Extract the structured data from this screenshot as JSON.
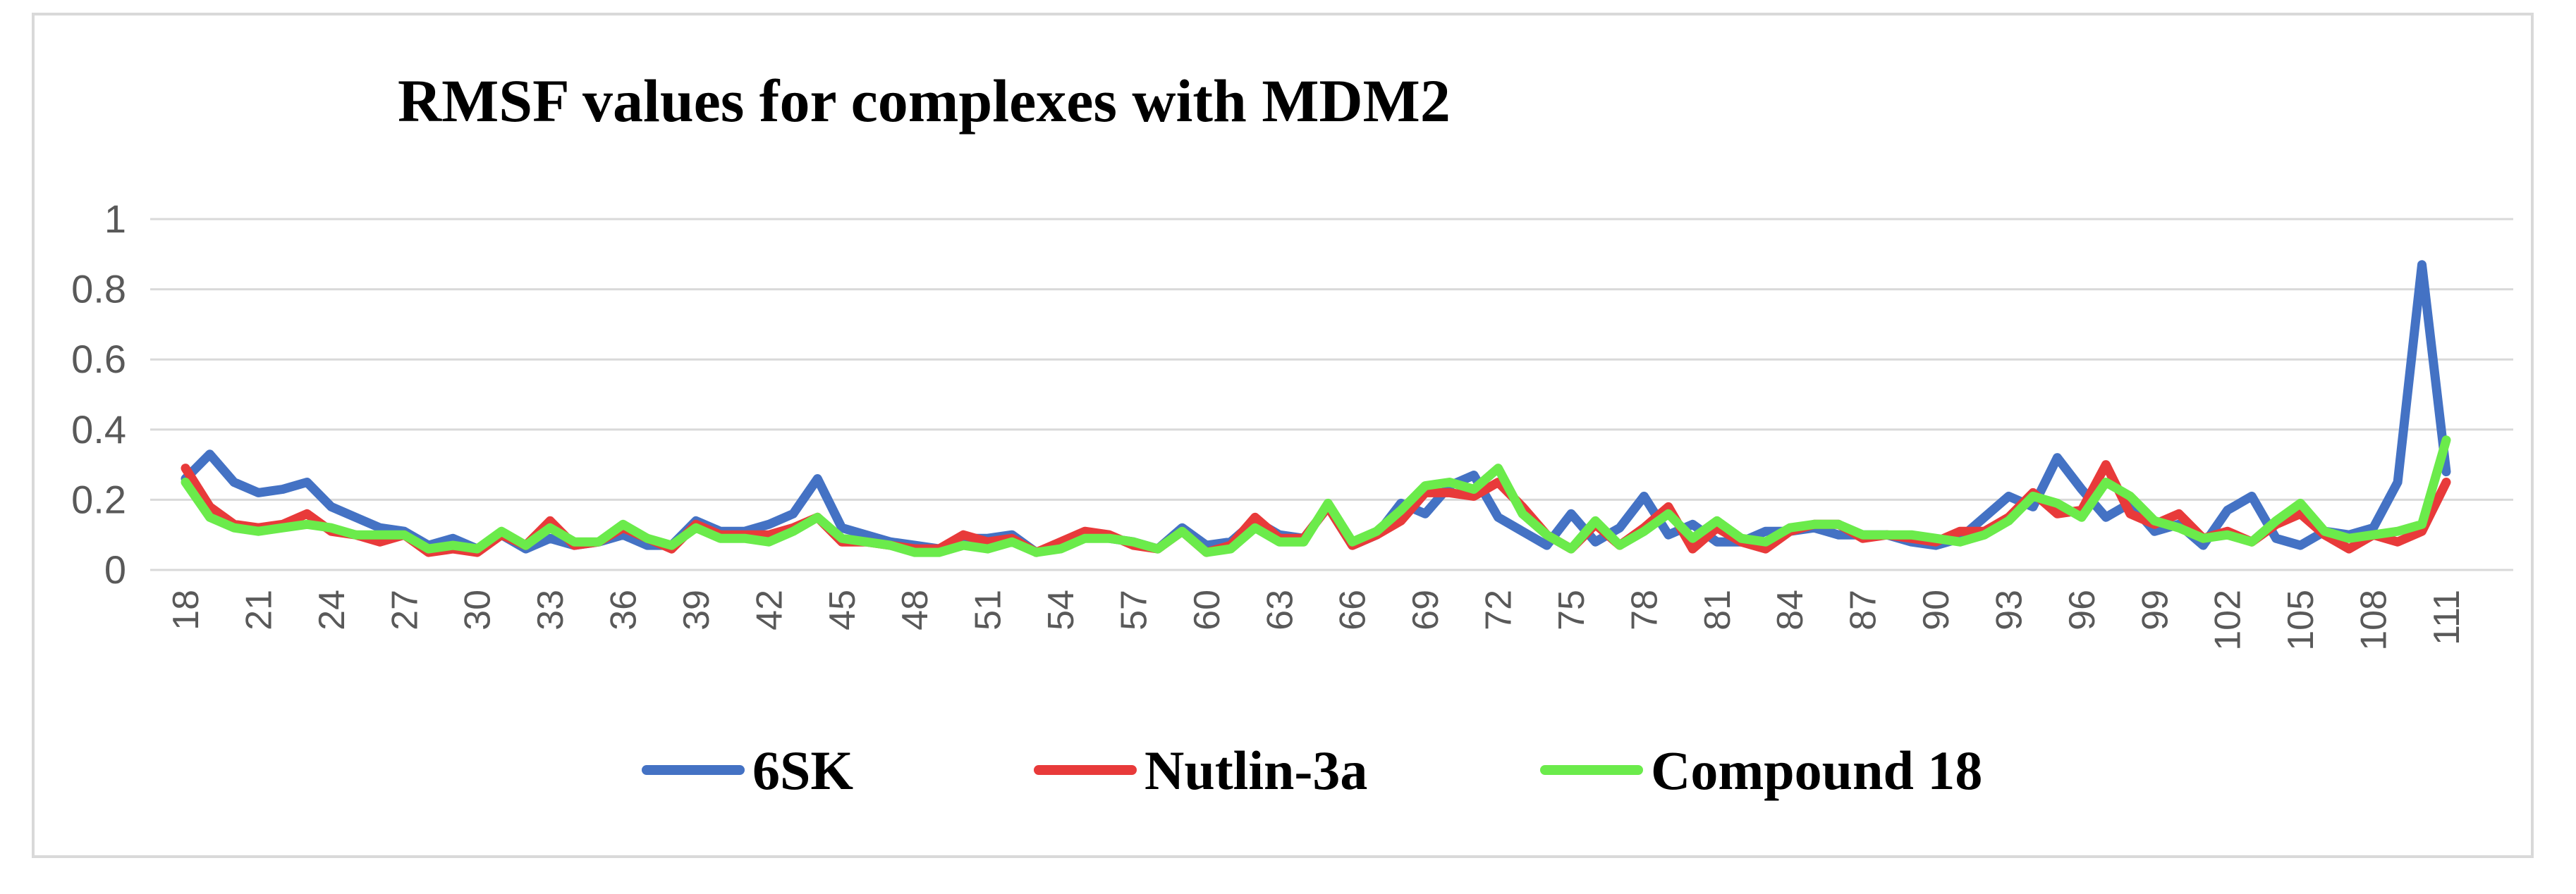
{
  "chart_data": {
    "type": "line",
    "title": "RMSF values for complexes with MDM2",
    "xlabel": "",
    "ylabel": "",
    "ylim": [
      0,
      1
    ],
    "yticks": [
      "0",
      "0.2",
      "0.4",
      "0.6",
      "0.8",
      "1"
    ],
    "x": [
      18,
      19,
      20,
      21,
      22,
      23,
      24,
      25,
      26,
      27,
      28,
      29,
      30,
      31,
      32,
      33,
      34,
      35,
      36,
      37,
      38,
      39,
      40,
      41,
      42,
      43,
      44,
      45,
      46,
      47,
      48,
      49,
      50,
      51,
      52,
      53,
      54,
      55,
      56,
      57,
      58,
      59,
      60,
      61,
      62,
      63,
      64,
      65,
      66,
      67,
      68,
      69,
      70,
      71,
      72,
      73,
      74,
      75,
      76,
      77,
      78,
      79,
      80,
      81,
      82,
      83,
      84,
      85,
      86,
      87,
      88,
      89,
      90,
      91,
      92,
      93,
      94,
      95,
      96,
      97,
      98,
      99,
      100,
      101,
      102,
      103,
      104,
      105,
      106,
      107,
      108,
      109,
      110,
      111
    ],
    "xtick_labels": [
      "18",
      "21",
      "24",
      "27",
      "30",
      "33",
      "36",
      "39",
      "42",
      "45",
      "48",
      "51",
      "54",
      "57",
      "60",
      "63",
      "66",
      "69",
      "72",
      "75",
      "78",
      "81",
      "84",
      "87",
      "90",
      "93",
      "96",
      "99",
      "102",
      "105",
      "108",
      "111"
    ],
    "grid": "horizontal",
    "legend_position": "bottom",
    "series": [
      {
        "name": "6SK",
        "color": "#4472C4",
        "values": [
          0.26,
          0.33,
          0.25,
          0.22,
          0.23,
          0.25,
          0.18,
          0.15,
          0.12,
          0.11,
          0.07,
          0.09,
          0.06,
          0.1,
          0.06,
          0.09,
          0.07,
          0.08,
          0.1,
          0.07,
          0.07,
          0.14,
          0.11,
          0.11,
          0.13,
          0.16,
          0.26,
          0.12,
          0.1,
          0.08,
          0.07,
          0.06,
          0.09,
          0.09,
          0.1,
          0.05,
          0.07,
          0.1,
          0.09,
          0.08,
          0.06,
          0.12,
          0.07,
          0.08,
          0.14,
          0.1,
          0.09,
          0.18,
          0.07,
          0.1,
          0.19,
          0.16,
          0.24,
          0.27,
          0.15,
          0.11,
          0.07,
          0.16,
          0.08,
          0.12,
          0.21,
          0.1,
          0.13,
          0.08,
          0.08,
          0.11,
          0.11,
          0.12,
          0.1,
          0.1,
          0.1,
          0.08,
          0.07,
          0.09,
          0.15,
          0.21,
          0.18,
          0.32,
          0.23,
          0.15,
          0.19,
          0.11,
          0.13,
          0.07,
          0.17,
          0.21,
          0.09,
          0.07,
          0.11,
          0.1,
          0.12,
          0.25,
          0.87,
          0.28
        ]
      },
      {
        "name": "Nutlin-3a",
        "color": "#E83A3A",
        "values": [
          0.29,
          0.18,
          0.13,
          0.12,
          0.13,
          0.16,
          0.11,
          0.1,
          0.08,
          0.1,
          0.05,
          0.06,
          0.05,
          0.1,
          0.07,
          0.14,
          0.07,
          0.08,
          0.12,
          0.09,
          0.06,
          0.13,
          0.1,
          0.1,
          0.1,
          0.12,
          0.15,
          0.08,
          0.08,
          0.07,
          0.06,
          0.06,
          0.1,
          0.08,
          0.09,
          0.05,
          0.08,
          0.11,
          0.1,
          0.07,
          0.06,
          0.11,
          0.05,
          0.07,
          0.15,
          0.09,
          0.09,
          0.18,
          0.07,
          0.1,
          0.14,
          0.22,
          0.22,
          0.21,
          0.25,
          0.18,
          0.1,
          0.06,
          0.13,
          0.07,
          0.12,
          0.18,
          0.06,
          0.12,
          0.08,
          0.06,
          0.11,
          0.13,
          0.13,
          0.09,
          0.1,
          0.09,
          0.08,
          0.11,
          0.11,
          0.15,
          0.22,
          0.16,
          0.17,
          0.3,
          0.16,
          0.13,
          0.16,
          0.09,
          0.11,
          0.08,
          0.13,
          0.16,
          0.1,
          0.06,
          0.1,
          0.08,
          0.11,
          0.25
        ]
      },
      {
        "name": "Compound 18",
        "color": "#6BEB4B",
        "values": [
          0.25,
          0.15,
          0.12,
          0.11,
          0.12,
          0.13,
          0.12,
          0.1,
          0.1,
          0.1,
          0.06,
          0.07,
          0.06,
          0.11,
          0.07,
          0.12,
          0.08,
          0.08,
          0.13,
          0.09,
          0.07,
          0.12,
          0.09,
          0.09,
          0.08,
          0.11,
          0.15,
          0.09,
          0.08,
          0.07,
          0.05,
          0.05,
          0.07,
          0.06,
          0.08,
          0.05,
          0.06,
          0.09,
          0.09,
          0.08,
          0.06,
          0.11,
          0.05,
          0.06,
          0.12,
          0.08,
          0.08,
          0.19,
          0.08,
          0.11,
          0.17,
          0.24,
          0.25,
          0.23,
          0.29,
          0.16,
          0.1,
          0.06,
          0.14,
          0.07,
          0.11,
          0.16,
          0.09,
          0.14,
          0.09,
          0.08,
          0.12,
          0.13,
          0.13,
          0.1,
          0.1,
          0.1,
          0.09,
          0.08,
          0.1,
          0.14,
          0.21,
          0.19,
          0.15,
          0.25,
          0.21,
          0.14,
          0.12,
          0.09,
          0.1,
          0.08,
          0.14,
          0.19,
          0.11,
          0.09,
          0.1,
          0.11,
          0.13,
          0.37
        ]
      }
    ]
  }
}
